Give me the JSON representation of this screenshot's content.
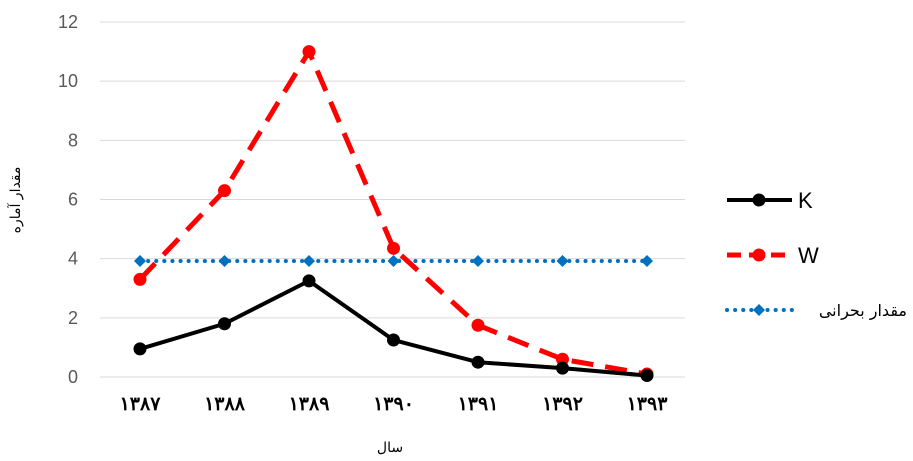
{
  "chart_data": {
    "type": "line",
    "xlabel": "سال",
    "ylabel": "مقدار آماره",
    "categories": [
      "۱۳۸۷",
      "۱۳۸۸",
      "۱۳۸۹",
      "۱۳۹۰",
      "۱۳۹۱",
      "۱۳۹۲",
      "۱۳۹۳"
    ],
    "y_ticks": [
      "0",
      "2",
      "4",
      "6",
      "8",
      "10",
      "12"
    ],
    "ylim": [
      0,
      12
    ],
    "grid": true,
    "legend_position": "right",
    "series": [
      {
        "name": "K",
        "values": [
          0.95,
          1.8,
          3.25,
          1.25,
          0.5,
          0.3,
          0.05
        ],
        "color": "#000000",
        "style": "solid",
        "marker": "circle"
      },
      {
        "name": "W",
        "values": [
          3.3,
          6.3,
          11.0,
          4.35,
          1.75,
          0.6,
          0.1
        ],
        "color": "#ff0000",
        "style": "dashed",
        "marker": "circle"
      },
      {
        "name": "مقدار بحرانی",
        "values": [
          3.92,
          3.92,
          3.92,
          3.92,
          3.92,
          3.92,
          3.92
        ],
        "color": "#0070c0",
        "style": "dotted",
        "marker": "diamond"
      }
    ]
  }
}
